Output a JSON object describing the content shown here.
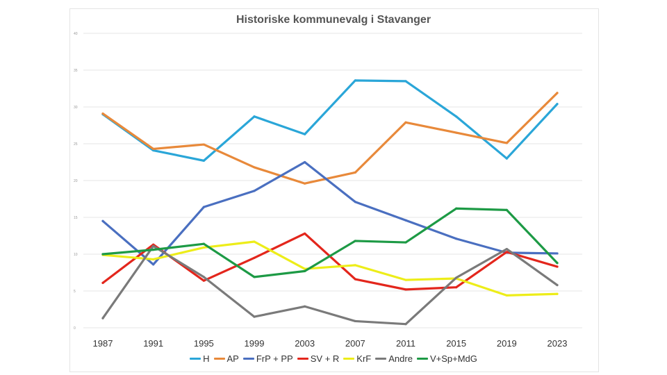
{
  "chart_data": {
    "type": "line",
    "title": "Historiske kommunevalg i Stavanger",
    "xlabel": "",
    "ylabel": "",
    "categories": [
      "1987",
      "1991",
      "1995",
      "1999",
      "2003",
      "2007",
      "2011",
      "2015",
      "2019",
      "2023"
    ],
    "ylim": [
      0,
      40
    ],
    "yticks": [
      "0",
      "5",
      "10",
      "15",
      "20",
      "25",
      "30",
      "35",
      "40"
    ],
    "grid": true,
    "legend": "bottom",
    "series": [
      {
        "name": "H",
        "color": "#2aa6d8",
        "values": [
          29,
          24.1,
          22.7,
          28.7,
          26.3,
          33.6,
          33.5,
          28.7,
          23,
          30.4
        ]
      },
      {
        "name": "AP",
        "color": "#e8893a",
        "values": [
          29.1,
          24.3,
          24.9,
          21.8,
          19.6,
          21.1,
          27.9,
          26.5,
          25.1,
          31.9
        ]
      },
      {
        "name": "FrP + PP",
        "color": "#4a6fc0",
        "values": [
          14.5,
          8.6,
          16.4,
          18.6,
          22.5,
          17.1,
          14.6,
          12.1,
          10.2,
          10.1
        ]
      },
      {
        "name": "SV + R",
        "color": "#e3261c",
        "values": [
          6.1,
          11.3,
          6.4,
          9.5,
          12.8,
          6.6,
          5.2,
          5.5,
          10.3,
          8.3
        ]
      },
      {
        "name": "KrF",
        "color": "#eded19",
        "values": [
          9.9,
          9.3,
          10.9,
          11.7,
          8,
          8.5,
          6.5,
          6.7,
          4.4,
          4.6
        ]
      },
      {
        "name": "Andre",
        "color": "#7a7a7a",
        "values": [
          1.3,
          11.1,
          6.9,
          1.5,
          2.9,
          0.9,
          0.5,
          6.8,
          10.7,
          5.8
        ]
      },
      {
        "name": "V+Sp+MdG",
        "color": "#1d9a45",
        "values": [
          10,
          10.6,
          11.4,
          6.9,
          7.7,
          11.8,
          11.6,
          16.2,
          16,
          8.8
        ]
      }
    ]
  }
}
